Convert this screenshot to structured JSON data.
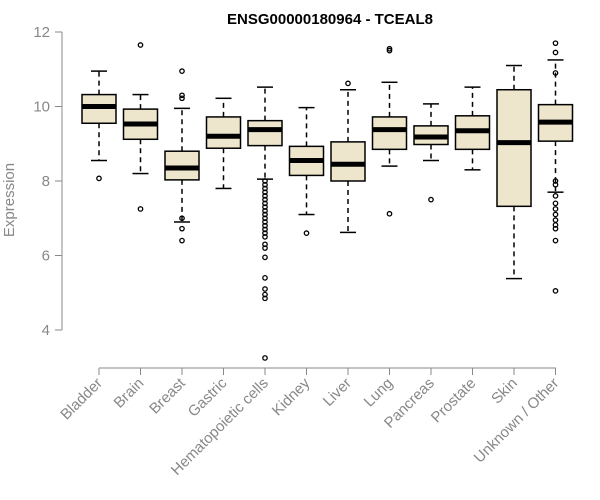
{
  "chart_data": {
    "type": "boxplot",
    "title": "ENSG00000180964 - TCEAL8",
    "xlabel": "",
    "ylabel": "Expression",
    "ylim": [
      3.0,
      12.4
    ],
    "yticks": [
      4,
      6,
      8,
      10,
      12
    ],
    "colors": {
      "box_fill": "#ede6cc",
      "stroke": "#000000",
      "axis": "#888888"
    },
    "categories": [
      "Bladder",
      "Brain",
      "Breast",
      "Gastric",
      "Hematopoietic cells",
      "Kidney",
      "Liver",
      "Lung",
      "Pancreas",
      "Prostate",
      "Skin",
      "Unknown / Other"
    ],
    "boxes": [
      {
        "name": "Bladder",
        "whisker_low": 8.55,
        "q1": 9.55,
        "median": 10.0,
        "q3": 10.32,
        "whisker_high": 10.95,
        "outliers": [
          8.07
        ]
      },
      {
        "name": "Brain",
        "whisker_low": 8.2,
        "q1": 9.12,
        "median": 9.53,
        "q3": 9.93,
        "whisker_high": 10.32,
        "outliers": [
          11.65,
          7.25
        ]
      },
      {
        "name": "Breast",
        "whisker_low": 6.9,
        "q1": 8.03,
        "median": 8.35,
        "q3": 8.8,
        "whisker_high": 9.95,
        "outliers": [
          10.95,
          10.3,
          10.22,
          7.0,
          6.72,
          6.4
        ]
      },
      {
        "name": "Gastric",
        "whisker_low": 7.8,
        "q1": 8.88,
        "median": 9.2,
        "q3": 9.72,
        "whisker_high": 10.22,
        "outliers": []
      },
      {
        "name": "Hematopoietic cells",
        "whisker_low": 8.05,
        "q1": 8.95,
        "median": 9.38,
        "q3": 9.62,
        "whisker_high": 10.52,
        "outliers": [
          8.0,
          7.9,
          7.8,
          7.7,
          7.6,
          7.5,
          7.4,
          7.3,
          7.2,
          7.1,
          7.0,
          6.9,
          6.8,
          6.7,
          6.6,
          6.5,
          6.3,
          6.2,
          5.95,
          5.4,
          5.1,
          4.95,
          4.85,
          3.25
        ]
      },
      {
        "name": "Kidney",
        "whisker_low": 7.1,
        "q1": 8.15,
        "median": 8.55,
        "q3": 8.93,
        "whisker_high": 9.97,
        "outliers": [
          6.6
        ]
      },
      {
        "name": "Liver",
        "whisker_low": 6.62,
        "q1": 8.0,
        "median": 8.45,
        "q3": 9.05,
        "whisker_high": 10.45,
        "outliers": [
          10.62
        ]
      },
      {
        "name": "Lung",
        "whisker_low": 8.4,
        "q1": 8.85,
        "median": 9.38,
        "q3": 9.72,
        "whisker_high": 10.65,
        "outliers": [
          11.5,
          11.55,
          7.12
        ]
      },
      {
        "name": "Pancreas",
        "whisker_low": 8.55,
        "q1": 8.98,
        "median": 9.18,
        "q3": 9.48,
        "whisker_high": 10.07,
        "outliers": [
          7.5
        ]
      },
      {
        "name": "Prostate",
        "whisker_low": 8.3,
        "q1": 8.85,
        "median": 9.35,
        "q3": 9.75,
        "whisker_high": 10.52,
        "outliers": []
      },
      {
        "name": "Skin",
        "whisker_low": 5.38,
        "q1": 7.32,
        "median": 9.03,
        "q3": 10.45,
        "whisker_high": 11.1,
        "outliers": []
      },
      {
        "name": "Unknown / Other",
        "whisker_low": 7.7,
        "q1": 9.07,
        "median": 9.58,
        "q3": 10.05,
        "whisker_high": 11.25,
        "outliers": [
          11.7,
          11.45,
          10.9,
          7.6,
          7.4,
          7.25,
          7.1,
          6.95,
          6.82,
          6.72,
          6.4,
          7.9,
          8.0,
          5.05
        ]
      }
    ]
  }
}
